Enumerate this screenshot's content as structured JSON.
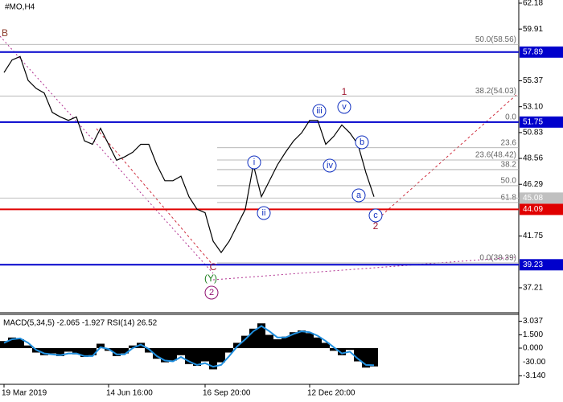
{
  "title": "#MO,H4",
  "chart_data": {
    "type": "line",
    "categories": [
      "19 Mar 2019",
      null,
      null,
      null,
      null,
      null,
      null,
      null,
      null,
      null,
      null,
      null,
      null,
      "14 Jun 16:00",
      null,
      null,
      null,
      null,
      null,
      null,
      null,
      null,
      null,
      null,
      null,
      "16 Sep 20:00",
      null,
      null,
      null,
      null,
      null,
      null,
      null,
      null,
      null,
      null,
      null,
      null,
      "12 Dec 20:00",
      null,
      null,
      null,
      null,
      null,
      null,
      null,
      null
    ],
    "values": [
      56.1,
      57.2,
      57.5,
      55.4,
      54.7,
      54.3,
      52.6,
      52.2,
      51.9,
      52.2,
      50.1,
      49.8,
      51.2,
      49.8,
      48.4,
      48.7,
      49.1,
      49.8,
      49.8,
      48.0,
      46.6,
      46.6,
      47.0,
      45.2,
      44.1,
      43.8,
      41.3,
      40.3,
      41.3,
      42.7,
      44.1,
      48.0,
      45.2,
      46.6,
      48.0,
      49.1,
      50.1,
      50.8,
      51.9,
      51.9,
      49.8,
      50.5,
      51.5,
      50.8,
      49.8,
      47.3,
      45.2
    ],
    "color": "#000000",
    "ylim": [
      35.09,
      62.46
    ],
    "yticks": [
      62.18,
      59.91,
      55.37,
      {
        "value": 53.1,
        "label": "53.10"
      },
      50.83,
      48.56,
      46.29,
      41.75,
      37.21
    ],
    "levels": [
      {
        "value": 57.89,
        "color": "#0000cc"
      },
      {
        "value": 51.75,
        "color": "#0000cc"
      },
      {
        "value": 45.08,
        "color": "#c0c0c0"
      },
      {
        "value": 44.09,
        "color": "#e00000"
      },
      {
        "value": 39.23,
        "color": "#0000cc"
      }
    ],
    "fib_labels": [
      {
        "text": "50.0(58.56)",
        "price": 58.56
      },
      {
        "text": "38.2(54.03)",
        "price": 54.03
      },
      {
        "text": "0.0",
        "price": 51.75
      },
      {
        "text": "23.6",
        "price": 49.5
      },
      {
        "text": "23.6(48.42)",
        "price": 48.42
      },
      {
        "text": "38.2",
        "price": 47.58
      },
      {
        "text": "50.0",
        "price": 46.17
      },
      {
        "text": "61.8",
        "price": 44.69
      },
      {
        "text": "0.0(39.39)",
        "price": 39.39
      }
    ],
    "wave_labels": [
      "B",
      "1",
      "iii",
      "v",
      "i",
      "iv",
      "b",
      "ii",
      "a",
      "c",
      "2",
      "C",
      "(Y)",
      "2"
    ]
  },
  "indicator": {
    "label": "MACD(5,34,5) -2.065 -1.927 RSI(14) 26.52",
    "histogram": [
      0.8,
      1.2,
      1.0,
      0.3,
      -0.5,
      -0.8,
      -0.6,
      -0.9,
      -0.4,
      -0.7,
      -1.0,
      -0.8,
      0.5,
      -0.3,
      -0.9,
      -0.6,
      0.3,
      0.6,
      -0.5,
      -1.2,
      -1.6,
      -1.4,
      -0.8,
      -1.8,
      -2.0,
      -1.5,
      -2.4,
      -1.6,
      -0.5,
      0.6,
      1.4,
      2.2,
      2.8,
      1.5,
      1.0,
      1.3,
      1.8,
      2.0,
      1.7,
      1.2,
      0.6,
      -0.3,
      -0.8,
      -0.2,
      -1.5,
      -2.2,
      -2.065
    ],
    "line": [
      0.6,
      1.0,
      1.1,
      0.6,
      -0.2,
      -0.6,
      -0.7,
      -0.8,
      -0.6,
      -0.6,
      -0.9,
      -0.9,
      0.1,
      -0.1,
      -0.7,
      -0.7,
      0.0,
      0.4,
      -0.1,
      -0.9,
      -1.4,
      -1.5,
      -1.0,
      -1.5,
      -1.9,
      -1.7,
      -2.1,
      -1.9,
      -0.9,
      0.2,
      1.0,
      1.9,
      2.5,
      1.9,
      1.2,
      1.2,
      1.6,
      1.9,
      1.8,
      1.4,
      0.8,
      0.1,
      -0.6,
      -0.4,
      -1.2,
      -1.9,
      -1.927
    ],
    "ylim": [
      -3.545,
      3.727
    ],
    "yticks": [
      3.037,
      {
        "value": 1.5,
        "label": "1.500"
      },
      {
        "value": 0,
        "label": "0.000"
      },
      {
        "value": -3.14,
        "label": "-3.140"
      }
    ],
    "rsi_level_label": "-30.00"
  }
}
